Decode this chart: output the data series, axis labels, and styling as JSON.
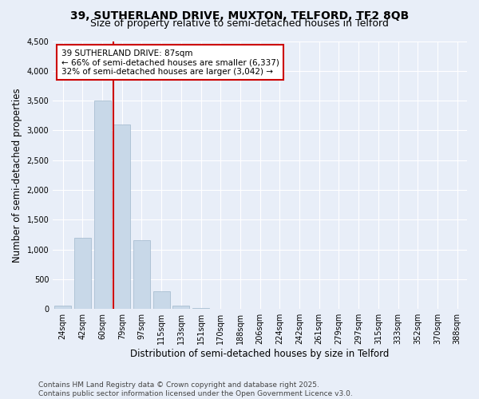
{
  "title": "39, SUTHERLAND DRIVE, MUXTON, TELFORD, TF2 8QB",
  "subtitle": "Size of property relative to semi-detached houses in Telford",
  "xlabel": "Distribution of semi-detached houses by size in Telford",
  "ylabel": "Number of semi-detached properties",
  "bar_labels": [
    "24sqm",
    "42sqm",
    "60sqm",
    "79sqm",
    "97sqm",
    "115sqm",
    "133sqm",
    "151sqm",
    "170sqm",
    "188sqm",
    "206sqm",
    "224sqm",
    "242sqm",
    "261sqm",
    "279sqm",
    "297sqm",
    "315sqm",
    "333sqm",
    "352sqm",
    "370sqm",
    "388sqm"
  ],
  "bar_values": [
    60,
    1200,
    3500,
    3100,
    1150,
    300,
    60,
    10,
    5,
    3,
    2,
    1,
    1,
    0,
    0,
    0,
    0,
    0,
    0,
    0,
    0
  ],
  "annotation_title": "39 SUTHERLAND DRIVE: 87sqm",
  "annotation_line1": "← 66% of semi-detached houses are smaller (6,337)",
  "annotation_line2": "32% of semi-detached houses are larger (3,042) →",
  "bar_color": "#c8d8e8",
  "bar_edge_color": "#a0b8cc",
  "vline_color": "#cc0000",
  "annotation_box_edge": "#cc0000",
  "background_color": "#e8eef8",
  "grid_color": "#ffffff",
  "footer_line1": "Contains HM Land Registry data © Crown copyright and database right 2025.",
  "footer_line2": "Contains public sector information licensed under the Open Government Licence v3.0.",
  "ylim": [
    0,
    4500
  ],
  "title_fontsize": 10,
  "subtitle_fontsize": 9,
  "axis_label_fontsize": 8.5,
  "tick_fontsize": 7,
  "annotation_fontsize": 7.5,
  "footer_fontsize": 6.5,
  "vline_x": 2.57
}
